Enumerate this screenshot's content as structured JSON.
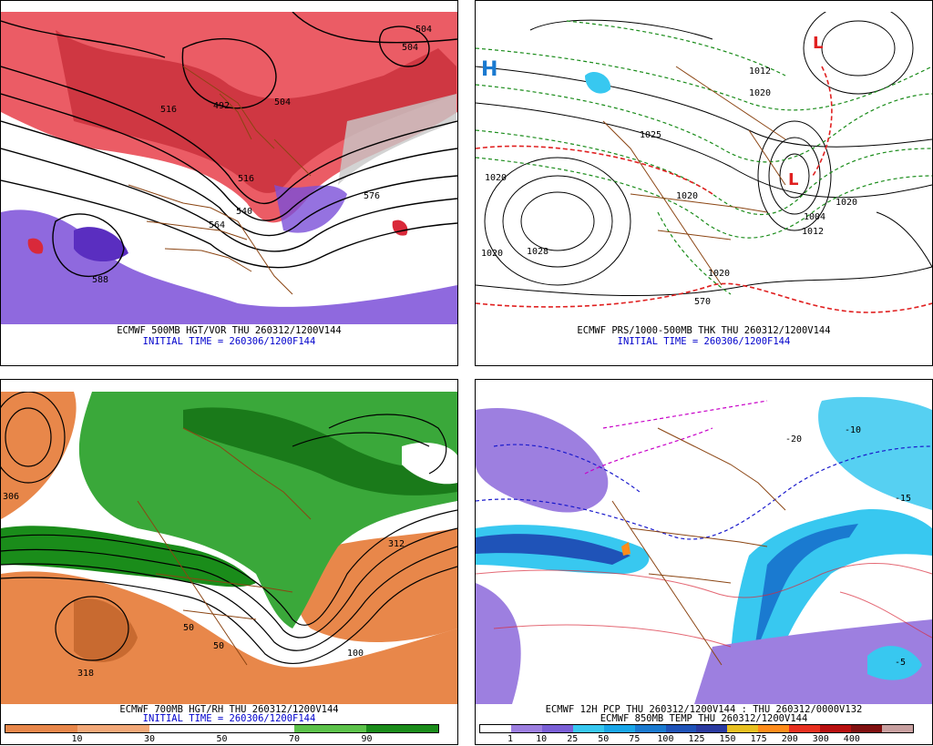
{
  "panels": [
    {
      "id": "p1",
      "caption_line1": "ECMWF 500MB HGT/VOR THU 260312/1200V144",
      "caption_line2": "INITIAL TIME = 260306/1200F144",
      "contour_labels": [
        "504",
        "504",
        "492",
        "504",
        "516",
        "516",
        "576",
        "540",
        "564",
        "588"
      ]
    },
    {
      "id": "p2",
      "caption_line1": "ECMWF PRS/1000-500MB THK THU 260312/1200V144",
      "caption_line2": "INITIAL TIME = 260306/1200F144",
      "contour_labels": [
        "1020",
        "1028",
        "1020",
        "1020",
        "1025",
        "1020",
        "1020",
        "1012",
        "1020",
        "1004",
        "1012",
        "570"
      ]
    },
    {
      "id": "p3",
      "caption_line1": "ECMWF 700MB HGT/RH THU 260312/1200V144",
      "caption_line2": "INITIAL TIME = 260306/1200F144",
      "contour_labels": [
        "306",
        "318",
        "312",
        "50",
        "50",
        "100"
      ],
      "colorbar": {
        "colors": [
          "#e8874a",
          "#f2a878",
          "#ffffff",
          "#ffffff",
          "#5cc24a",
          "#1a8c1a"
        ],
        "ticks": [
          "10",
          "30",
          "50",
          "70",
          "90"
        ]
      }
    },
    {
      "id": "p4",
      "caption_line1": "ECMWF 12H PCP THU 260312/1200V144 : THU 260312/0000V132",
      "caption_line2": "ECMWF 850MB TEMP THU 260312/1200V144",
      "contour_labels": [
        "-20",
        "-10",
        "-15",
        "-5"
      ],
      "colorbar": {
        "colors": [
          "#ffffff",
          "#9d7fe0",
          "#7a5fd6",
          "#38c8f0",
          "#19a6e8",
          "#1a7ad0",
          "#1f53b8",
          "#2a3aa0",
          "#e8c020",
          "#ff8c1a",
          "#e83020",
          "#b81010",
          "#801010",
          "#c8a0a0"
        ],
        "ticks": [
          "1",
          "10",
          "25",
          "50",
          "75",
          "100",
          "125",
          "150",
          "175",
          "200",
          "300",
          "400"
        ]
      }
    }
  ],
  "colors": {
    "red_vort": "#d9293a",
    "purple_vort": "#7b4fd8",
    "brown_borders": "#8b4513",
    "green_dash": "#1a8c1a",
    "red_dash": "#e02020",
    "caption_blue": "#0000cc"
  }
}
